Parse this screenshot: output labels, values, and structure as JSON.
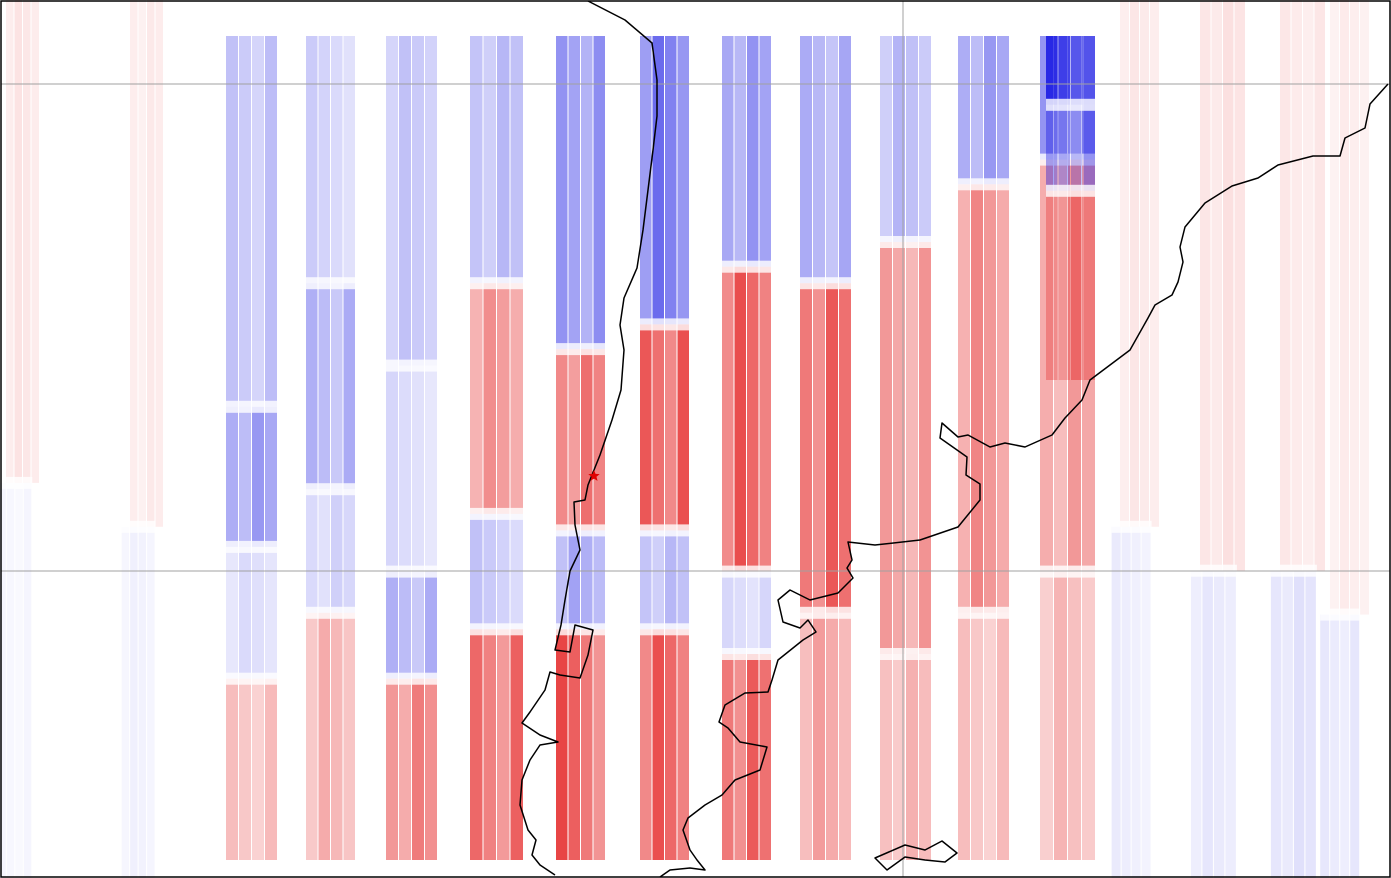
{
  "map": {
    "type": "swath-displacement-map",
    "colors": {
      "positive": "#e00000",
      "negative": "#0000e0",
      "coastline": "#000000",
      "gridline": "#a0a0a0",
      "epicenter": "#e00000",
      "frame": "#000000"
    },
    "gridlines": {
      "horizontal": 2,
      "vertical": 1
    },
    "epicenter_marker": "star-icon",
    "swaths": [
      {
        "dir": "up",
        "seg": [
          [
            0.0,
            0.55,
            0.15
          ],
          [
            0.55,
            1.0,
            -0.05
          ]
        ]
      },
      {
        "dir": "up",
        "seg": [
          [
            0.0,
            0.6,
            0.12
          ],
          [
            0.6,
            1.0,
            -0.08
          ]
        ]
      },
      {
        "dir": "dn",
        "seg": [
          [
            0.0,
            0.45,
            -0.35
          ],
          [
            0.45,
            0.62,
            -0.55
          ],
          [
            0.62,
            0.78,
            -0.2
          ],
          [
            0.78,
            1.0,
            0.35
          ]
        ]
      },
      {
        "dir": "dn",
        "seg": [
          [
            0.0,
            0.3,
            -0.25
          ],
          [
            0.3,
            0.55,
            -0.45
          ],
          [
            0.55,
            0.7,
            -0.25
          ],
          [
            0.7,
            1.0,
            0.45
          ]
        ]
      },
      {
        "dir": "dn",
        "seg": [
          [
            0.0,
            0.4,
            -0.3
          ],
          [
            0.4,
            0.65,
            -0.2
          ],
          [
            0.65,
            0.78,
            -0.45
          ],
          [
            0.78,
            1.0,
            0.7
          ]
        ]
      },
      {
        "dir": "dn",
        "seg": [
          [
            0.0,
            0.3,
            -0.35
          ],
          [
            0.3,
            0.58,
            0.55
          ],
          [
            0.58,
            0.72,
            -0.3
          ],
          [
            0.72,
            1.0,
            0.85
          ]
        ]
      },
      {
        "dir": "dn",
        "seg": [
          [
            0.0,
            0.38,
            -0.55
          ],
          [
            0.38,
            0.6,
            0.7
          ],
          [
            0.6,
            0.72,
            -0.45
          ],
          [
            0.72,
            1.0,
            0.9
          ]
        ]
      },
      {
        "dir": "dn",
        "seg": [
          [
            0.0,
            0.35,
            -0.75
          ],
          [
            0.35,
            0.6,
            0.85
          ],
          [
            0.6,
            0.72,
            -0.35
          ],
          [
            0.72,
            1.0,
            0.85
          ]
        ]
      },
      {
        "dir": "dn",
        "seg": [
          [
            0.0,
            0.28,
            -0.55
          ],
          [
            0.28,
            0.65,
            0.9
          ],
          [
            0.65,
            0.75,
            -0.2
          ],
          [
            0.75,
            1.0,
            0.8
          ]
        ]
      },
      {
        "dir": "dn",
        "seg": [
          [
            0.0,
            0.3,
            -0.45
          ],
          [
            0.3,
            0.7,
            0.85
          ],
          [
            0.7,
            1.0,
            0.5
          ]
        ]
      },
      {
        "dir": "dn",
        "seg": [
          [
            0.0,
            0.25,
            -0.4
          ],
          [
            0.25,
            0.75,
            0.55
          ],
          [
            0.75,
            1.0,
            0.4
          ]
        ]
      },
      {
        "dir": "dn",
        "seg": [
          [
            0.0,
            0.18,
            -0.55
          ],
          [
            0.18,
            0.7,
            0.65
          ],
          [
            0.7,
            1.0,
            0.35
          ]
        ]
      },
      {
        "dir": "dn",
        "seg": [
          [
            0.0,
            0.15,
            -0.6
          ],
          [
            0.15,
            0.65,
            0.55
          ],
          [
            0.65,
            1.0,
            0.4
          ]
        ]
      },
      {
        "dir": "dn",
        "seg": [
          [
            0.0,
            0.2,
            -0.9
          ],
          [
            0.2,
            0.45,
            -0.5
          ],
          [
            0.45,
            1.0,
            0.45
          ]
        ]
      },
      {
        "dir": "up",
        "seg": [
          [
            0.0,
            0.6,
            0.12
          ],
          [
            0.6,
            1.0,
            -0.1
          ]
        ]
      },
      {
        "dir": "up",
        "seg": [
          [
            0.0,
            0.65,
            0.15
          ],
          [
            0.65,
            1.0,
            -0.12
          ]
        ]
      },
      {
        "dir": "up",
        "seg": [
          [
            0.0,
            0.65,
            0.12
          ],
          [
            0.65,
            1.0,
            -0.15
          ]
        ]
      },
      {
        "dir": "up",
        "seg": [
          [
            0.0,
            0.7,
            0.1
          ],
          [
            0.7,
            1.0,
            -0.12
          ]
        ]
      }
    ]
  }
}
